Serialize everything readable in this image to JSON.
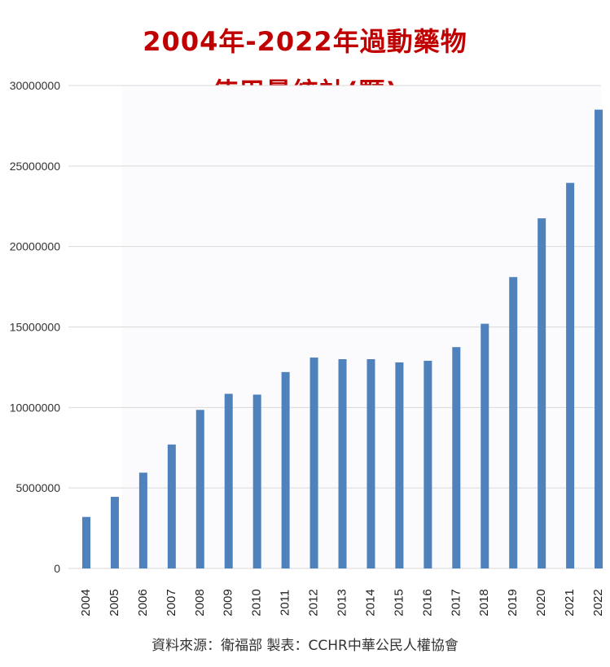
{
  "chart_data": {
    "type": "bar",
    "title_line1": "2004年-2022年過動藥物",
    "title_line2": "使用量統計(顆)",
    "categories": [
      "2004",
      "2005",
      "2006",
      "2007",
      "2008",
      "2009",
      "2010",
      "2011",
      "2012",
      "2013",
      "2014",
      "2015",
      "2016",
      "2017",
      "2018",
      "2019",
      "2020",
      "2021",
      "2022"
    ],
    "values": [
      3200000,
      4450000,
      5950000,
      7700000,
      9850000,
      10850000,
      10800000,
      12200000,
      13100000,
      13000000,
      13000000,
      12800000,
      12900000,
      13750000,
      15200000,
      18100000,
      21750000,
      23950000,
      28500000
    ],
    "ylim": [
      0,
      30000000
    ],
    "yticks": [
      "0",
      "5000000",
      "10000000",
      "15000000",
      "20000000",
      "25000000",
      "30000000"
    ],
    "ytick_values": [
      0,
      5000000,
      10000000,
      15000000,
      20000000,
      25000000,
      30000000
    ],
    "grid": true,
    "xlabel": "",
    "ylabel": "",
    "bar_color": "#4f81bd",
    "title_color": "#c00000"
  },
  "source_note": "資料來源：衛福部  製表：CCHR中華公民人權協會"
}
